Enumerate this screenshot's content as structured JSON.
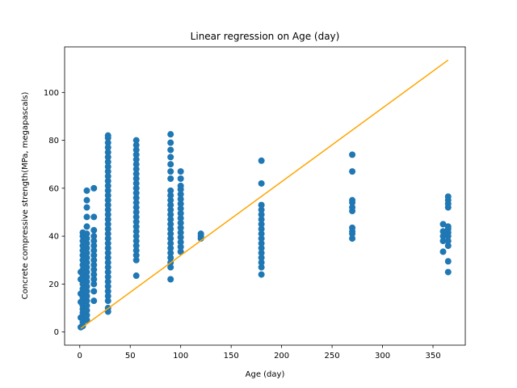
{
  "chart_data": {
    "type": "scatter",
    "title": "Linear regression on Age (day)",
    "xlabel": "Age (day)",
    "ylabel": "Concrete compressive strength(MPa, megapascals)",
    "xlim": [
      -15,
      382
    ],
    "ylim": [
      -5.5,
      119
    ],
    "xticks": [
      0,
      50,
      100,
      150,
      200,
      250,
      300,
      350
    ],
    "yticks": [
      0,
      20,
      40,
      60,
      80,
      100
    ],
    "grid": false,
    "legend": "none",
    "colors": {
      "points": "#1f77b4",
      "line": "#ffa500"
    },
    "series": [
      {
        "kind": "scatter",
        "points": [
          [
            1,
            2
          ],
          [
            1,
            6
          ],
          [
            1,
            12.5
          ],
          [
            1,
            16
          ],
          [
            1,
            22
          ],
          [
            1,
            25
          ],
          [
            3,
            2.5
          ],
          [
            3,
            4
          ],
          [
            3,
            6
          ],
          [
            3,
            8
          ],
          [
            3,
            9.5
          ],
          [
            3,
            11
          ],
          [
            3,
            13
          ],
          [
            3,
            14.5
          ],
          [
            3,
            16
          ],
          [
            3,
            18
          ],
          [
            3,
            20
          ],
          [
            3,
            22
          ],
          [
            3,
            24
          ],
          [
            3,
            26
          ],
          [
            3,
            28
          ],
          [
            3,
            30
          ],
          [
            3,
            32
          ],
          [
            3,
            34
          ],
          [
            3,
            36
          ],
          [
            3,
            38
          ],
          [
            3,
            40
          ],
          [
            3,
            41.5
          ],
          [
            7,
            5
          ],
          [
            7,
            7
          ],
          [
            7,
            9
          ],
          [
            7,
            11
          ],
          [
            7,
            13
          ],
          [
            7,
            15
          ],
          [
            7,
            17
          ],
          [
            7,
            19
          ],
          [
            7,
            21
          ],
          [
            7,
            23
          ],
          [
            7,
            25
          ],
          [
            7,
            27
          ],
          [
            7,
            29
          ],
          [
            7,
            31
          ],
          [
            7,
            33
          ],
          [
            7,
            35
          ],
          [
            7,
            37
          ],
          [
            7,
            39
          ],
          [
            7,
            41
          ],
          [
            7,
            44
          ],
          [
            7,
            48
          ],
          [
            7,
            52
          ],
          [
            7,
            55
          ],
          [
            7,
            59
          ],
          [
            14,
            13
          ],
          [
            14,
            17
          ],
          [
            14,
            20
          ],
          [
            14,
            22
          ],
          [
            14,
            24
          ],
          [
            14,
            26
          ],
          [
            14,
            28
          ],
          [
            14,
            30
          ],
          [
            14,
            32
          ],
          [
            14,
            34
          ],
          [
            14,
            36
          ],
          [
            14,
            38
          ],
          [
            14,
            40
          ],
          [
            14,
            42.5
          ],
          [
            14,
            48
          ],
          [
            14,
            60
          ],
          [
            28,
            8.5
          ],
          [
            28,
            10
          ],
          [
            28,
            13
          ],
          [
            28,
            15
          ],
          [
            28,
            17
          ],
          [
            28,
            19
          ],
          [
            28,
            21
          ],
          [
            28,
            23
          ],
          [
            28,
            25
          ],
          [
            28,
            27
          ],
          [
            28,
            29
          ],
          [
            28,
            31
          ],
          [
            28,
            33
          ],
          [
            28,
            35
          ],
          [
            28,
            37
          ],
          [
            28,
            39
          ],
          [
            28,
            41
          ],
          [
            28,
            43
          ],
          [
            28,
            45
          ],
          [
            28,
            47
          ],
          [
            28,
            49
          ],
          [
            28,
            51
          ],
          [
            28,
            53
          ],
          [
            28,
            55
          ],
          [
            28,
            57
          ],
          [
            28,
            59
          ],
          [
            28,
            61
          ],
          [
            28,
            63
          ],
          [
            28,
            65
          ],
          [
            28,
            67
          ],
          [
            28,
            69
          ],
          [
            28,
            71
          ],
          [
            28,
            73
          ],
          [
            28,
            75
          ],
          [
            28,
            77
          ],
          [
            28,
            79
          ],
          [
            28,
            81
          ],
          [
            28,
            82
          ],
          [
            56,
            23.5
          ],
          [
            56,
            30
          ],
          [
            56,
            32
          ],
          [
            56,
            34
          ],
          [
            56,
            36
          ],
          [
            56,
            38
          ],
          [
            56,
            40
          ],
          [
            56,
            42
          ],
          [
            56,
            44
          ],
          [
            56,
            46
          ],
          [
            56,
            48
          ],
          [
            56,
            50
          ],
          [
            56,
            52
          ],
          [
            56,
            54
          ],
          [
            56,
            56
          ],
          [
            56,
            58
          ],
          [
            56,
            60
          ],
          [
            56,
            62
          ],
          [
            56,
            64
          ],
          [
            56,
            66
          ],
          [
            56,
            68
          ],
          [
            56,
            70
          ],
          [
            56,
            72
          ],
          [
            56,
            74
          ],
          [
            56,
            76
          ],
          [
            56,
            78
          ],
          [
            56,
            80
          ],
          [
            90,
            22
          ],
          [
            90,
            27
          ],
          [
            90,
            29
          ],
          [
            90,
            31
          ],
          [
            90,
            33
          ],
          [
            90,
            35
          ],
          [
            90,
            37
          ],
          [
            90,
            39
          ],
          [
            90,
            41
          ],
          [
            90,
            43
          ],
          [
            90,
            45
          ],
          [
            90,
            47
          ],
          [
            90,
            49
          ],
          [
            90,
            51
          ],
          [
            90,
            53
          ],
          [
            90,
            55
          ],
          [
            90,
            57
          ],
          [
            90,
            59
          ],
          [
            90,
            64
          ],
          [
            90,
            67
          ],
          [
            90,
            70
          ],
          [
            90,
            73
          ],
          [
            90,
            76
          ],
          [
            90,
            79
          ],
          [
            90,
            82.5
          ],
          [
            100,
            33.5
          ],
          [
            100,
            35.5
          ],
          [
            100,
            37.5
          ],
          [
            100,
            39.5
          ],
          [
            100,
            41.5
          ],
          [
            100,
            43.5
          ],
          [
            100,
            45.5
          ],
          [
            100,
            47.5
          ],
          [
            100,
            49.5
          ],
          [
            100,
            51.5
          ],
          [
            100,
            53.5
          ],
          [
            100,
            55.5
          ],
          [
            100,
            57.5
          ],
          [
            100,
            59.5
          ],
          [
            100,
            61
          ],
          [
            100,
            64
          ],
          [
            100,
            67
          ],
          [
            120,
            39
          ],
          [
            120,
            40
          ],
          [
            120,
            41
          ],
          [
            180,
            24
          ],
          [
            180,
            27
          ],
          [
            180,
            29
          ],
          [
            180,
            31
          ],
          [
            180,
            33
          ],
          [
            180,
            35
          ],
          [
            180,
            37
          ],
          [
            180,
            39
          ],
          [
            180,
            41
          ],
          [
            180,
            43
          ],
          [
            180,
            45
          ],
          [
            180,
            47
          ],
          [
            180,
            49
          ],
          [
            180,
            51
          ],
          [
            180,
            53
          ],
          [
            180,
            62
          ],
          [
            180,
            71.5
          ],
          [
            270,
            39
          ],
          [
            270,
            41
          ],
          [
            270,
            42
          ],
          [
            270,
            43.5
          ],
          [
            270,
            50.5
          ],
          [
            270,
            52
          ],
          [
            270,
            54
          ],
          [
            270,
            55
          ],
          [
            270,
            67
          ],
          [
            270,
            74
          ],
          [
            360,
            33.5
          ],
          [
            360,
            38
          ],
          [
            360,
            40
          ],
          [
            360,
            42
          ],
          [
            360,
            45
          ],
          [
            365,
            25
          ],
          [
            365,
            29.5
          ],
          [
            365,
            36
          ],
          [
            365,
            38
          ],
          [
            365,
            40
          ],
          [
            365,
            41.5
          ],
          [
            365,
            43
          ],
          [
            365,
            44
          ],
          [
            365,
            52
          ],
          [
            365,
            53.5
          ],
          [
            365,
            55
          ],
          [
            365,
            56.5
          ]
        ]
      },
      {
        "kind": "line",
        "points": [
          [
            1,
            1.5
          ],
          [
            365,
            113.5
          ]
        ]
      }
    ]
  }
}
